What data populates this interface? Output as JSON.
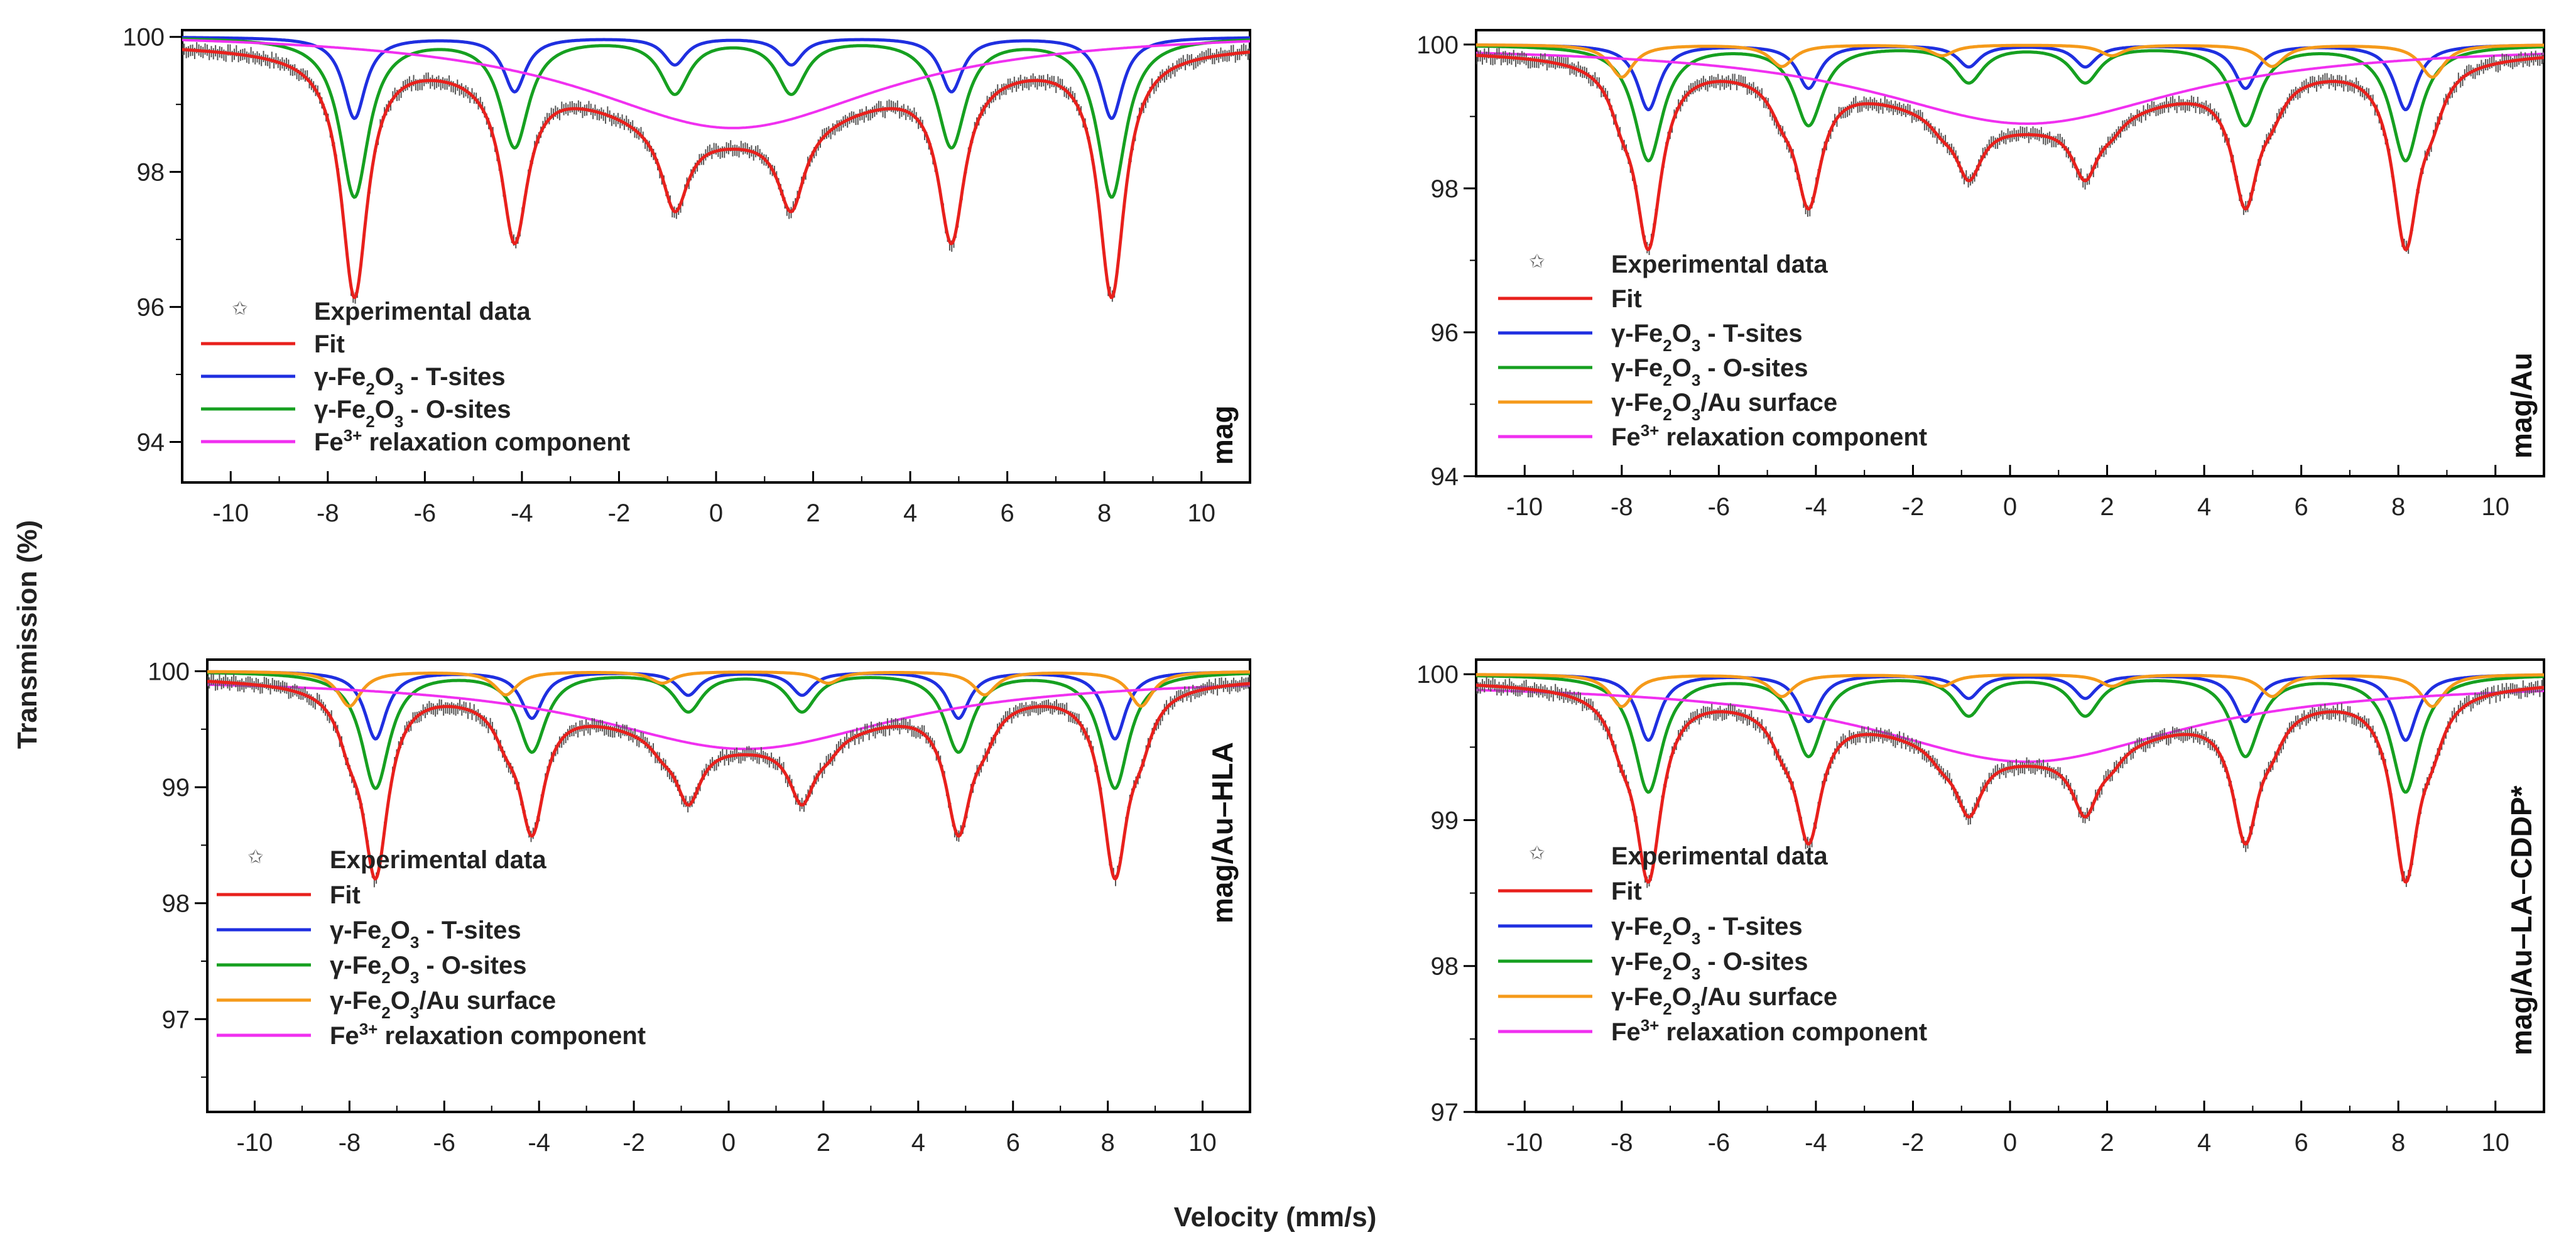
{
  "figure": {
    "ylabel": "Transmission (%)",
    "xlabel": "Velocity (mm/s)"
  },
  "legend_labels": {
    "exp": "Experimental data",
    "fit": "Fit",
    "t_pre": "γ-Fe",
    "t_sub1": "2",
    "t_mid": "O",
    "t_sub2": "3",
    "t_post": " - T-sites",
    "o_pre": "γ-Fe",
    "o_sub1": "2",
    "o_mid": "O",
    "o_sub2": "3",
    "o_post": " - O-sites",
    "s_pre": "γ-Fe",
    "s_sub1": "2",
    "s_mid": "O",
    "s_sub2": "3",
    "s_post": "/Au surface",
    "r_pre": "Fe",
    "r_sup": "3+",
    "r_post": " relaxation component"
  },
  "colors": {
    "fit": "#e8201c",
    "t_sites": "#1f2fe0",
    "o_sites": "#16a020",
    "surface": "#f59a1a",
    "relaxation": "#f030f0",
    "experimental": "#555555"
  },
  "chart_data": [
    {
      "type": "line",
      "panel_label": "mag",
      "xlim": [
        -11,
        11
      ],
      "ylim": [
        93.4,
        100.1
      ],
      "xticks": [
        "-10",
        "-8",
        "-6",
        "-4",
        "-2",
        "0",
        "2",
        "4",
        "6",
        "8",
        "10"
      ],
      "yticks": [
        "94",
        "96",
        "98",
        "100"
      ],
      "legend": [
        "exp",
        "fit",
        "t",
        "o",
        "r"
      ],
      "line_positions": [
        -7.45,
        -4.15,
        -0.85,
        1.55,
        4.85,
        8.15
      ],
      "series": [
        {
          "key": "t",
          "depths": [
            1.2,
            0.8,
            0.4,
            0.4,
            0.8,
            1.2
          ],
          "width": 0.28,
          "baseline": 100.0
        },
        {
          "key": "o",
          "depths": [
            2.35,
            1.6,
            0.8,
            0.8,
            1.6,
            2.35
          ],
          "width": 0.36,
          "baseline": 100.0
        },
        {
          "key": "r",
          "depth": 1.45,
          "center": 0.35,
          "width": 7.6,
          "baseline": 100.1
        }
      ],
      "relaxation_baseline_offset": 0.0
    },
    {
      "type": "line",
      "panel_label": "mag/Au",
      "xlim": [
        -11,
        11
      ],
      "ylim": [
        94,
        100.2
      ],
      "xticks": [
        "-10",
        "-8",
        "-6",
        "-4",
        "-2",
        "0",
        "2",
        "4",
        "6",
        "8",
        "10"
      ],
      "yticks": [
        "94",
        "96",
        "98",
        "100"
      ],
      "legend": [
        "exp",
        "fit",
        "t",
        "o",
        "s",
        "r"
      ],
      "line_positions": [
        -7.45,
        -4.15,
        -0.85,
        1.55,
        4.85,
        8.15
      ],
      "series": [
        {
          "key": "t",
          "depths": [
            0.9,
            0.6,
            0.3,
            0.3,
            0.6,
            0.9
          ],
          "width": 0.28,
          "baseline": 100.0
        },
        {
          "key": "o",
          "depths": [
            1.6,
            1.1,
            0.5,
            0.5,
            1.1,
            1.6
          ],
          "width": 0.36,
          "baseline": 100.0
        },
        {
          "key": "s",
          "depths": [
            0.45,
            0.3,
            0.15,
            0.15,
            0.3,
            0.45
          ],
          "width": 0.3,
          "baseline": 100.0,
          "shift": -0.55
        },
        {
          "key": "r",
          "depth": 1.1,
          "center": 0.35,
          "width": 7.8,
          "baseline": 100.0
        }
      ]
    },
    {
      "type": "line",
      "panel_label": "mag/Au–HLA",
      "xlim": [
        -11,
        11
      ],
      "ylim": [
        96.2,
        100.1
      ],
      "xticks": [
        "-10",
        "-8",
        "-6",
        "-4",
        "-2",
        "0",
        "2",
        "4",
        "6",
        "8",
        "10"
      ],
      "yticks": [
        "97",
        "98",
        "99",
        "100"
      ],
      "legend": [
        "exp",
        "fit",
        "t",
        "o",
        "s",
        "r"
      ],
      "line_positions": [
        -7.45,
        -4.15,
        -0.85,
        1.55,
        4.85,
        8.15
      ],
      "series": [
        {
          "key": "t",
          "depths": [
            0.58,
            0.4,
            0.2,
            0.2,
            0.4,
            0.58
          ],
          "width": 0.28,
          "baseline": 100.0
        },
        {
          "key": "o",
          "depths": [
            1.0,
            0.68,
            0.33,
            0.33,
            0.68,
            1.0
          ],
          "width": 0.36,
          "baseline": 100.0
        },
        {
          "key": "s",
          "depths": [
            0.3,
            0.2,
            0.1,
            0.1,
            0.2,
            0.3
          ],
          "width": 0.3,
          "baseline": 100.0,
          "shift": -0.55
        },
        {
          "key": "r",
          "depth": 0.62,
          "center": 0.35,
          "width": 7.8,
          "baseline": 99.95
        }
      ]
    },
    {
      "type": "line",
      "panel_label": "mag/Au–LA–CDDP*",
      "xlim": [
        -11,
        11
      ],
      "ylim": [
        97,
        100.1
      ],
      "xticks": [
        "-10",
        "-8",
        "-6",
        "-4",
        "-2",
        "0",
        "2",
        "4",
        "6",
        "8",
        "10"
      ],
      "yticks": [
        "97",
        "98",
        "99",
        "100"
      ],
      "legend": [
        "exp",
        "fit",
        "t",
        "o",
        "s",
        "r"
      ],
      "line_positions": [
        -7.45,
        -4.15,
        -0.85,
        1.55,
        4.85,
        8.15
      ],
      "series": [
        {
          "key": "t",
          "depths": [
            0.45,
            0.32,
            0.16,
            0.16,
            0.32,
            0.45
          ],
          "width": 0.28,
          "baseline": 100.0
        },
        {
          "key": "o",
          "depths": [
            0.8,
            0.55,
            0.27,
            0.27,
            0.55,
            0.8
          ],
          "width": 0.36,
          "baseline": 100.0
        },
        {
          "key": "s",
          "depths": [
            0.22,
            0.15,
            0.08,
            0.08,
            0.15,
            0.22
          ],
          "width": 0.3,
          "baseline": 100.0,
          "shift": -0.55
        },
        {
          "key": "r",
          "depth": 0.55,
          "center": 0.35,
          "width": 7.8,
          "baseline": 99.95
        }
      ]
    }
  ]
}
